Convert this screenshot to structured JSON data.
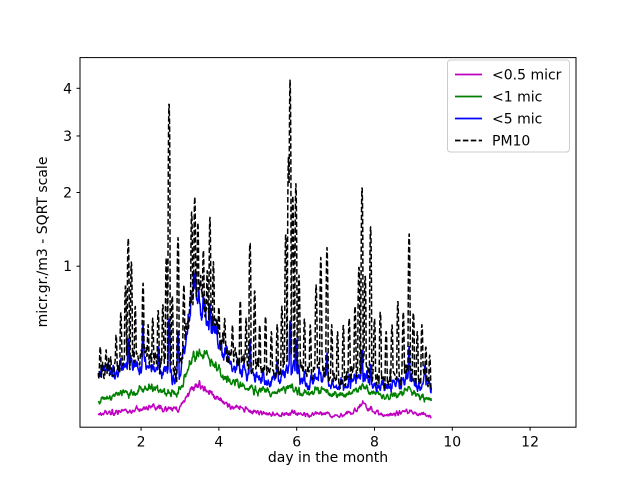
{
  "chart_data": {
    "type": "line",
    "title": "",
    "xlabel": "day in the month",
    "ylabel": "micr.gr./m3 - SQRT scale",
    "yscale": "sqrt",
    "grid": false,
    "xlim": [
      0.43,
      13.18
    ],
    "ylim": [
      0.009,
      4.72
    ],
    "xticks": [
      2,
      4,
      6,
      8,
      10,
      12
    ],
    "yticks": [
      1,
      2,
      3,
      4
    ],
    "x_range_of_data": [
      0.9,
      9.46
    ],
    "legend": {
      "location": "upper right"
    },
    "series": [
      {
        "name": "<0.5 micr",
        "color": "#bf00bf",
        "linestyle": "solid",
        "noise": 0.14,
        "base": [
          [
            0.9,
            0.028
          ],
          [
            1.1,
            0.033
          ],
          [
            1.3,
            0.03
          ],
          [
            1.5,
            0.036
          ],
          [
            1.7,
            0.033
          ],
          [
            1.9,
            0.04
          ],
          [
            2.1,
            0.038
          ],
          [
            2.3,
            0.044
          ],
          [
            2.5,
            0.04
          ],
          [
            2.7,
            0.038
          ],
          [
            2.9,
            0.036
          ],
          [
            3.05,
            0.045
          ],
          [
            3.2,
            0.08
          ],
          [
            3.35,
            0.1
          ],
          [
            3.5,
            0.108
          ],
          [
            3.65,
            0.095
          ],
          [
            3.8,
            0.085
          ],
          [
            3.95,
            0.07
          ],
          [
            4.1,
            0.058
          ],
          [
            4.3,
            0.044
          ],
          [
            4.5,
            0.04
          ],
          [
            4.7,
            0.038
          ],
          [
            4.9,
            0.034
          ],
          [
            5.1,
            0.032
          ],
          [
            5.3,
            0.03
          ],
          [
            5.5,
            0.028
          ],
          [
            5.7,
            0.03
          ],
          [
            5.9,
            0.032
          ],
          [
            6.1,
            0.028
          ],
          [
            6.3,
            0.026
          ],
          [
            6.5,
            0.03
          ],
          [
            6.7,
            0.028
          ],
          [
            6.9,
            0.025
          ],
          [
            7.1,
            0.024
          ],
          [
            7.3,
            0.028
          ],
          [
            7.5,
            0.036
          ],
          [
            7.7,
            0.05
          ],
          [
            7.9,
            0.038
          ],
          [
            8.1,
            0.03
          ],
          [
            8.3,
            0.026
          ],
          [
            8.5,
            0.028
          ],
          [
            8.7,
            0.032
          ],
          [
            8.9,
            0.036
          ],
          [
            9.1,
            0.03
          ],
          [
            9.3,
            0.028
          ],
          [
            9.46,
            0.022
          ]
        ],
        "spikes": []
      },
      {
        "name": "<1 mic",
        "color": "#008000",
        "linestyle": "solid",
        "noise": 0.13,
        "base": [
          [
            0.9,
            0.058
          ],
          [
            1.1,
            0.065
          ],
          [
            1.3,
            0.07
          ],
          [
            1.5,
            0.08
          ],
          [
            1.7,
            0.078
          ],
          [
            1.9,
            0.09
          ],
          [
            2.1,
            0.095
          ],
          [
            2.3,
            0.1
          ],
          [
            2.5,
            0.092
          ],
          [
            2.7,
            0.085
          ],
          [
            2.9,
            0.078
          ],
          [
            3.05,
            0.095
          ],
          [
            3.2,
            0.18
          ],
          [
            3.35,
            0.24
          ],
          [
            3.5,
            0.275
          ],
          [
            3.65,
            0.24
          ],
          [
            3.8,
            0.215
          ],
          [
            3.95,
            0.19
          ],
          [
            4.1,
            0.15
          ],
          [
            4.3,
            0.125
          ],
          [
            4.5,
            0.11
          ],
          [
            4.7,
            0.1
          ],
          [
            4.9,
            0.092
          ],
          [
            5.1,
            0.088
          ],
          [
            5.3,
            0.085
          ],
          [
            5.5,
            0.08
          ],
          [
            5.7,
            0.09
          ],
          [
            5.9,
            0.1
          ],
          [
            6.1,
            0.085
          ],
          [
            6.3,
            0.08
          ],
          [
            6.5,
            0.09
          ],
          [
            6.7,
            0.095
          ],
          [
            6.9,
            0.08
          ],
          [
            7.1,
            0.075
          ],
          [
            7.3,
            0.08
          ],
          [
            7.5,
            0.09
          ],
          [
            7.7,
            0.105
          ],
          [
            7.9,
            0.085
          ],
          [
            8.1,
            0.075
          ],
          [
            8.3,
            0.07
          ],
          [
            8.5,
            0.075
          ],
          [
            8.7,
            0.085
          ],
          [
            8.9,
            0.095
          ],
          [
            9.1,
            0.075
          ],
          [
            9.3,
            0.065
          ],
          [
            9.46,
            0.055
          ]
        ],
        "spikes": []
      },
      {
        "name": "<5 mic",
        "color": "#0000ff",
        "linestyle": "solid",
        "noise": 0.2,
        "base": [
          [
            0.9,
            0.15
          ],
          [
            1.1,
            0.165
          ],
          [
            1.3,
            0.155
          ],
          [
            1.5,
            0.18
          ],
          [
            1.7,
            0.19
          ],
          [
            1.9,
            0.2
          ],
          [
            2.1,
            0.195
          ],
          [
            2.3,
            0.185
          ],
          [
            2.5,
            0.17
          ],
          [
            2.7,
            0.16
          ],
          [
            2.9,
            0.14
          ],
          [
            3.05,
            0.18
          ],
          [
            3.2,
            0.42
          ],
          [
            3.3,
            0.65
          ],
          [
            3.4,
            0.72
          ],
          [
            3.5,
            0.65
          ],
          [
            3.6,
            0.56
          ],
          [
            3.75,
            0.52
          ],
          [
            3.9,
            0.38
          ],
          [
            4.1,
            0.27
          ],
          [
            4.3,
            0.21
          ],
          [
            4.5,
            0.185
          ],
          [
            4.7,
            0.165
          ],
          [
            4.9,
            0.15
          ],
          [
            5.1,
            0.14
          ],
          [
            5.3,
            0.13
          ],
          [
            5.5,
            0.135
          ],
          [
            5.7,
            0.16
          ],
          [
            5.9,
            0.2
          ],
          [
            6.1,
            0.14
          ],
          [
            6.3,
            0.12
          ],
          [
            6.5,
            0.14
          ],
          [
            6.7,
            0.15
          ],
          [
            6.9,
            0.11
          ],
          [
            7.1,
            0.105
          ],
          [
            7.3,
            0.115
          ],
          [
            7.5,
            0.13
          ],
          [
            7.7,
            0.15
          ],
          [
            7.9,
            0.13
          ],
          [
            8.1,
            0.105
          ],
          [
            8.3,
            0.1
          ],
          [
            8.5,
            0.11
          ],
          [
            8.7,
            0.12
          ],
          [
            8.9,
            0.13
          ],
          [
            9.1,
            0.11
          ],
          [
            9.3,
            0.12
          ],
          [
            9.46,
            0.095
          ]
        ],
        "spikes": [
          [
            1.67,
            0.35
          ],
          [
            2.05,
            0.45
          ],
          [
            2.45,
            0.3
          ],
          [
            2.72,
            0.5
          ],
          [
            2.95,
            0.4
          ],
          [
            3.35,
            0.88
          ],
          [
            3.6,
            0.72
          ],
          [
            3.77,
            0.62
          ],
          [
            4.8,
            0.35
          ],
          [
            5.5,
            0.22
          ],
          [
            5.83,
            0.48
          ],
          [
            5.98,
            0.35
          ],
          [
            6.78,
            0.26
          ],
          [
            7.68,
            0.28
          ],
          [
            7.9,
            0.2
          ],
          [
            8.74,
            0.14
          ],
          [
            8.89,
            0.3
          ],
          [
            9.3,
            0.2
          ]
        ]
      },
      {
        "name": "PM10",
        "color": "#000000",
        "linestyle": "dashed",
        "noise": 0.22,
        "base": [
          [
            0.9,
            0.17
          ],
          [
            1.1,
            0.19
          ],
          [
            1.3,
            0.18
          ],
          [
            1.5,
            0.21
          ],
          [
            1.7,
            0.23
          ],
          [
            1.9,
            0.235
          ],
          [
            2.1,
            0.225
          ],
          [
            2.3,
            0.21
          ],
          [
            2.5,
            0.2
          ],
          [
            2.7,
            0.185
          ],
          [
            2.9,
            0.16
          ],
          [
            3.05,
            0.21
          ],
          [
            3.2,
            0.48
          ],
          [
            3.3,
            0.7
          ],
          [
            3.4,
            0.78
          ],
          [
            3.5,
            0.7
          ],
          [
            3.6,
            0.62
          ],
          [
            3.75,
            0.56
          ],
          [
            3.9,
            0.42
          ],
          [
            4.1,
            0.31
          ],
          [
            4.3,
            0.25
          ],
          [
            4.5,
            0.22
          ],
          [
            4.7,
            0.2
          ],
          [
            4.9,
            0.185
          ],
          [
            5.1,
            0.17
          ],
          [
            5.3,
            0.155
          ],
          [
            5.5,
            0.16
          ],
          [
            5.7,
            0.2
          ],
          [
            5.9,
            0.26
          ],
          [
            6.1,
            0.17
          ],
          [
            6.3,
            0.145
          ],
          [
            6.5,
            0.17
          ],
          [
            6.7,
            0.18
          ],
          [
            6.9,
            0.13
          ],
          [
            7.1,
            0.125
          ],
          [
            7.3,
            0.14
          ],
          [
            7.5,
            0.16
          ],
          [
            7.7,
            0.185
          ],
          [
            7.9,
            0.16
          ],
          [
            8.1,
            0.13
          ],
          [
            8.3,
            0.12
          ],
          [
            8.5,
            0.135
          ],
          [
            8.7,
            0.15
          ],
          [
            8.9,
            0.16
          ],
          [
            9.1,
            0.135
          ],
          [
            9.3,
            0.15
          ],
          [
            9.46,
            0.11
          ]
        ],
        "spikes": [
          [
            0.95,
            0.3
          ],
          [
            1.1,
            0.28
          ],
          [
            1.22,
            0.24
          ],
          [
            1.36,
            0.38
          ],
          [
            1.48,
            0.55
          ],
          [
            1.6,
            0.8
          ],
          [
            1.67,
            1.34
          ],
          [
            1.75,
            1.05
          ],
          [
            1.85,
            0.6
          ],
          [
            2.05,
            0.82
          ],
          [
            2.18,
            0.45
          ],
          [
            2.3,
            0.5
          ],
          [
            2.44,
            0.57
          ],
          [
            2.56,
            0.62
          ],
          [
            2.65,
            1.1
          ],
          [
            2.72,
            3.7
          ],
          [
            2.8,
            0.7
          ],
          [
            2.95,
            1.35
          ],
          [
            3.1,
            0.8
          ],
          [
            3.3,
            1.7
          ],
          [
            3.38,
            1.93
          ],
          [
            3.46,
            1.55
          ],
          [
            3.6,
            1.2
          ],
          [
            3.7,
            0.95
          ],
          [
            3.77,
            1.63
          ],
          [
            3.86,
            1.05
          ],
          [
            4.0,
            0.6
          ],
          [
            4.15,
            0.5
          ],
          [
            4.35,
            0.45
          ],
          [
            4.55,
            0.65
          ],
          [
            4.7,
            0.5
          ],
          [
            4.8,
            1.29
          ],
          [
            4.92,
            0.75
          ],
          [
            5.05,
            0.45
          ],
          [
            5.2,
            0.52
          ],
          [
            5.35,
            0.4
          ],
          [
            5.5,
            0.45
          ],
          [
            5.62,
            0.6
          ],
          [
            5.72,
            1.4
          ],
          [
            5.79,
            2.6
          ],
          [
            5.83,
            4.2
          ],
          [
            5.9,
            1.95
          ],
          [
            5.98,
            2.14
          ],
          [
            6.06,
            0.9
          ],
          [
            6.2,
            0.5
          ],
          [
            6.35,
            0.45
          ],
          [
            6.5,
            0.8
          ],
          [
            6.62,
            1.1
          ],
          [
            6.78,
            1.22
          ],
          [
            6.9,
            0.45
          ],
          [
            7.05,
            0.4
          ],
          [
            7.2,
            0.45
          ],
          [
            7.35,
            0.5
          ],
          [
            7.5,
            0.6
          ],
          [
            7.6,
            1.0
          ],
          [
            7.68,
            2.1
          ],
          [
            7.76,
            0.9
          ],
          [
            7.9,
            1.49
          ],
          [
            8.0,
            0.5
          ],
          [
            8.15,
            0.55
          ],
          [
            8.3,
            0.4
          ],
          [
            8.45,
            0.45
          ],
          [
            8.6,
            0.65
          ],
          [
            8.74,
            0.55
          ],
          [
            8.89,
            1.4
          ],
          [
            9.0,
            0.55
          ],
          [
            9.1,
            0.4
          ],
          [
            9.22,
            0.45
          ],
          [
            9.32,
            0.3
          ],
          [
            9.42,
            0.25
          ]
        ]
      }
    ]
  },
  "colors": {
    "background": "#ffffff",
    "axes": "#000000",
    "legend_border": "#cccccc"
  }
}
